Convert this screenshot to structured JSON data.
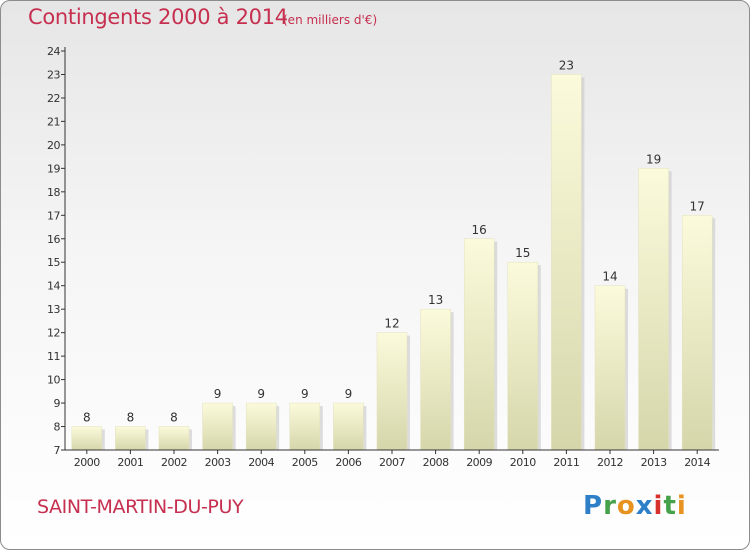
{
  "header": {
    "title": "Contingents 2000 à 2014",
    "subtitle": "(en milliers d'€)"
  },
  "footer": {
    "place_name": "SAINT-MARTIN-DU-PUY",
    "brand": [
      "P",
      "r",
      "o",
      "x",
      "i",
      "t",
      "i"
    ]
  },
  "colors": {
    "title": "#c62f4f",
    "bar_light": "#fbfbd9",
    "bar_dark": "#d6d6aa",
    "axis": "#333333"
  },
  "chart_data": {
    "type": "bar",
    "title": "Contingents 2000 à 2014",
    "subtitle": "(en milliers d'€)",
    "xlabel": "",
    "ylabel": "",
    "categories": [
      "2000",
      "2001",
      "2002",
      "2003",
      "2004",
      "2005",
      "2006",
      "2007",
      "2008",
      "2009",
      "2010",
      "2011",
      "2012",
      "2013",
      "2014"
    ],
    "values": [
      8,
      8,
      8,
      9,
      9,
      9,
      9,
      12,
      13,
      16,
      15,
      23,
      14,
      19,
      17
    ],
    "ylim": [
      7,
      24
    ],
    "yticks": [
      7,
      8,
      9,
      10,
      11,
      12,
      13,
      14,
      15,
      16,
      17,
      18,
      19,
      20,
      21,
      22,
      23,
      24
    ],
    "grid": false,
    "data_labels": true
  }
}
